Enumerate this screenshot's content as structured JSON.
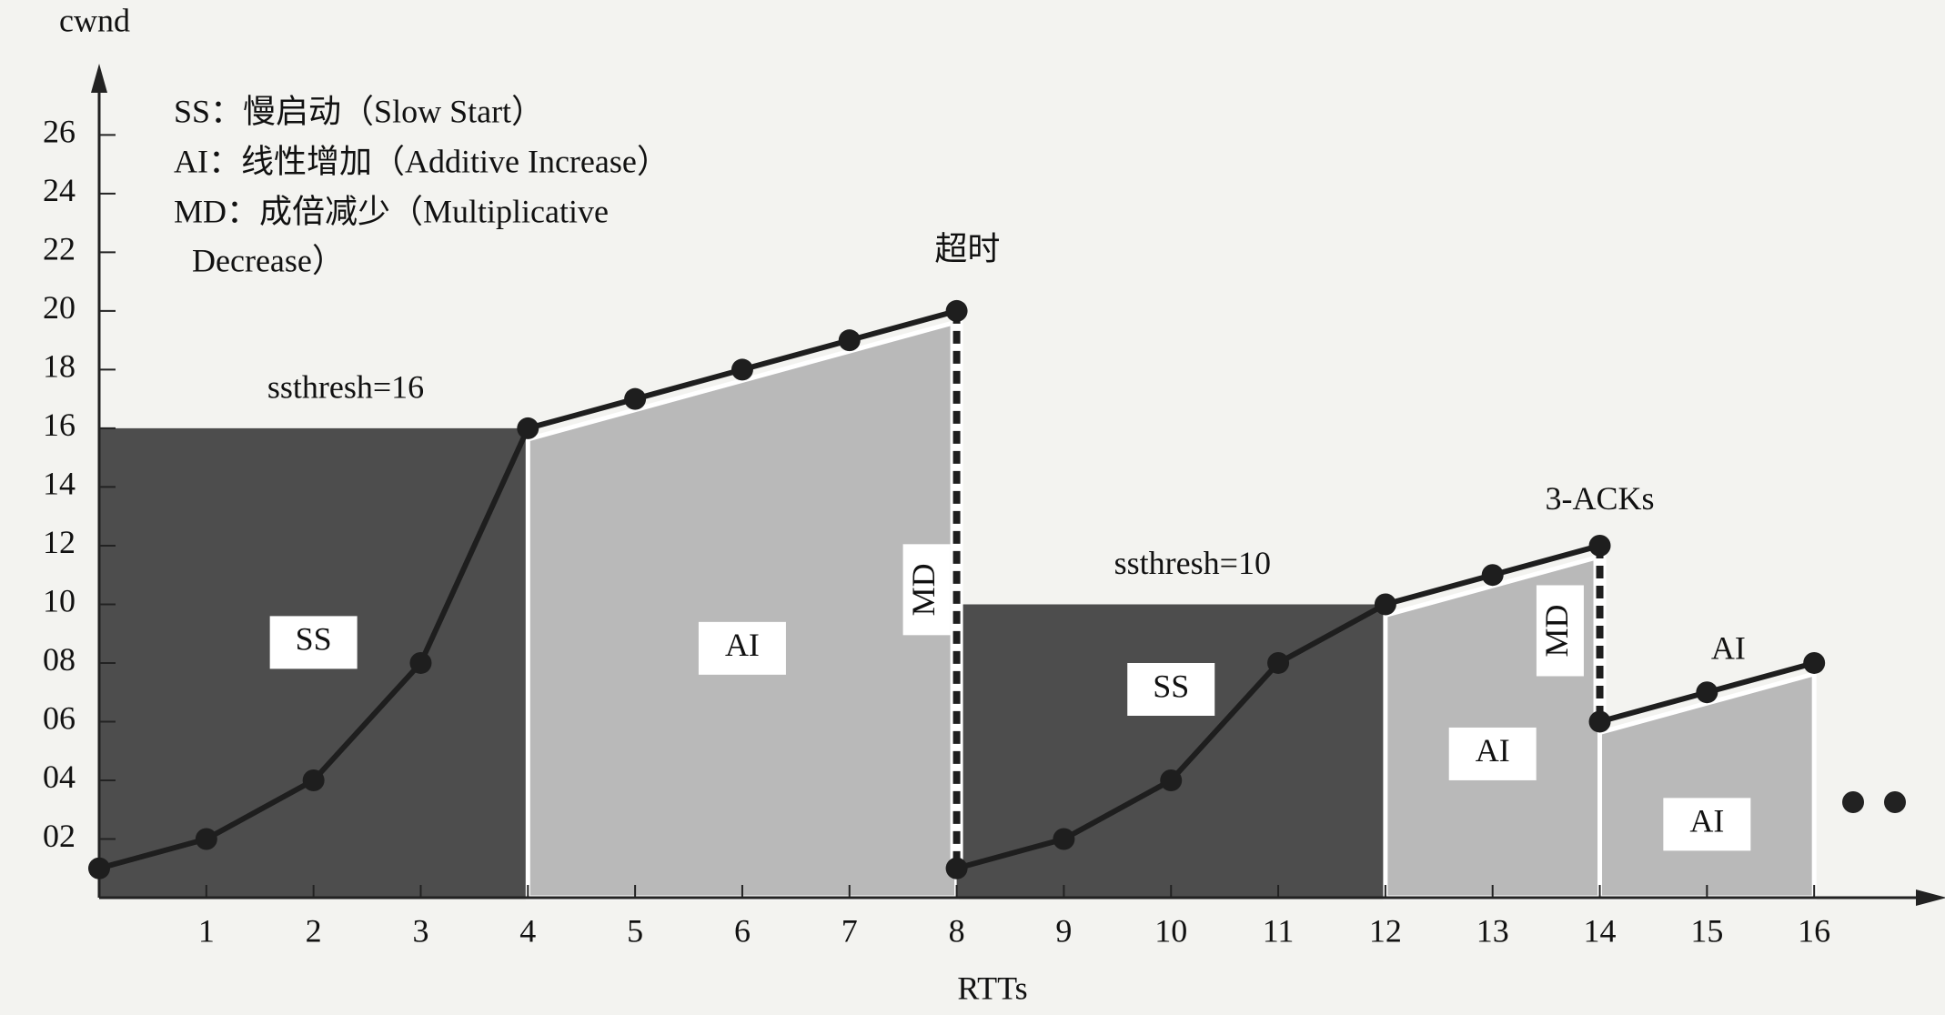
{
  "chart_data": {
    "type": "line",
    "y_label": "cwnd",
    "x_label": "RTTs",
    "notes": [
      "SS：慢启动（Slow Start）",
      "AI：线性增加（Additive Increase）",
      "MD：成倍减少（Multiplicative",
      "Decrease）"
    ],
    "xlim": [
      0,
      17
    ],
    "ylim": [
      0,
      27.5
    ],
    "xticks": [
      1,
      2,
      3,
      4,
      5,
      6,
      7,
      8,
      9,
      10,
      11,
      12,
      13,
      14,
      15,
      16
    ],
    "yticks": [
      {
        "value": 2,
        "label": "02"
      },
      {
        "value": 4,
        "label": "04"
      },
      {
        "value": 6,
        "label": "06"
      },
      {
        "value": 8,
        "label": "08"
      },
      10,
      12,
      14,
      16,
      18,
      20,
      22,
      24,
      26
    ],
    "line_color": "#1e1e1e",
    "series": [
      {
        "x": [
          0,
          1,
          2,
          3,
          4,
          5,
          6,
          7,
          8
        ],
        "values": [
          1,
          2,
          4,
          8,
          16,
          17,
          18,
          19,
          20
        ]
      },
      {
        "x": [
          8,
          9,
          10,
          11,
          12,
          13,
          14
        ],
        "values": [
          1,
          2,
          4,
          8,
          10,
          11,
          12
        ]
      },
      {
        "x": [
          14,
          15,
          16
        ],
        "values": [
          6,
          7,
          8
        ]
      }
    ],
    "regions": [
      {
        "label": "SS",
        "x": [
          0,
          4
        ],
        "ssthresh": 16,
        "color": "#4d4d4d"
      },
      {
        "label": "AI",
        "x": [
          4,
          8
        ],
        "color": "#b9b9b9"
      },
      {
        "label": "SS",
        "x": [
          8,
          12
        ],
        "ssthresh": 10,
        "color": "#4d4d4d"
      },
      {
        "label": "AI",
        "x": [
          12,
          14
        ],
        "color": "#b9b9b9"
      },
      {
        "label": "AI",
        "x": [
          14,
          16
        ],
        "color": "#b9b9b9"
      }
    ],
    "drop_labels": [
      "MD",
      "MD"
    ],
    "annotations": [
      "ssthresh=16",
      "超时",
      "ssthresh=10",
      "3-ACKs",
      "AI"
    ]
  }
}
